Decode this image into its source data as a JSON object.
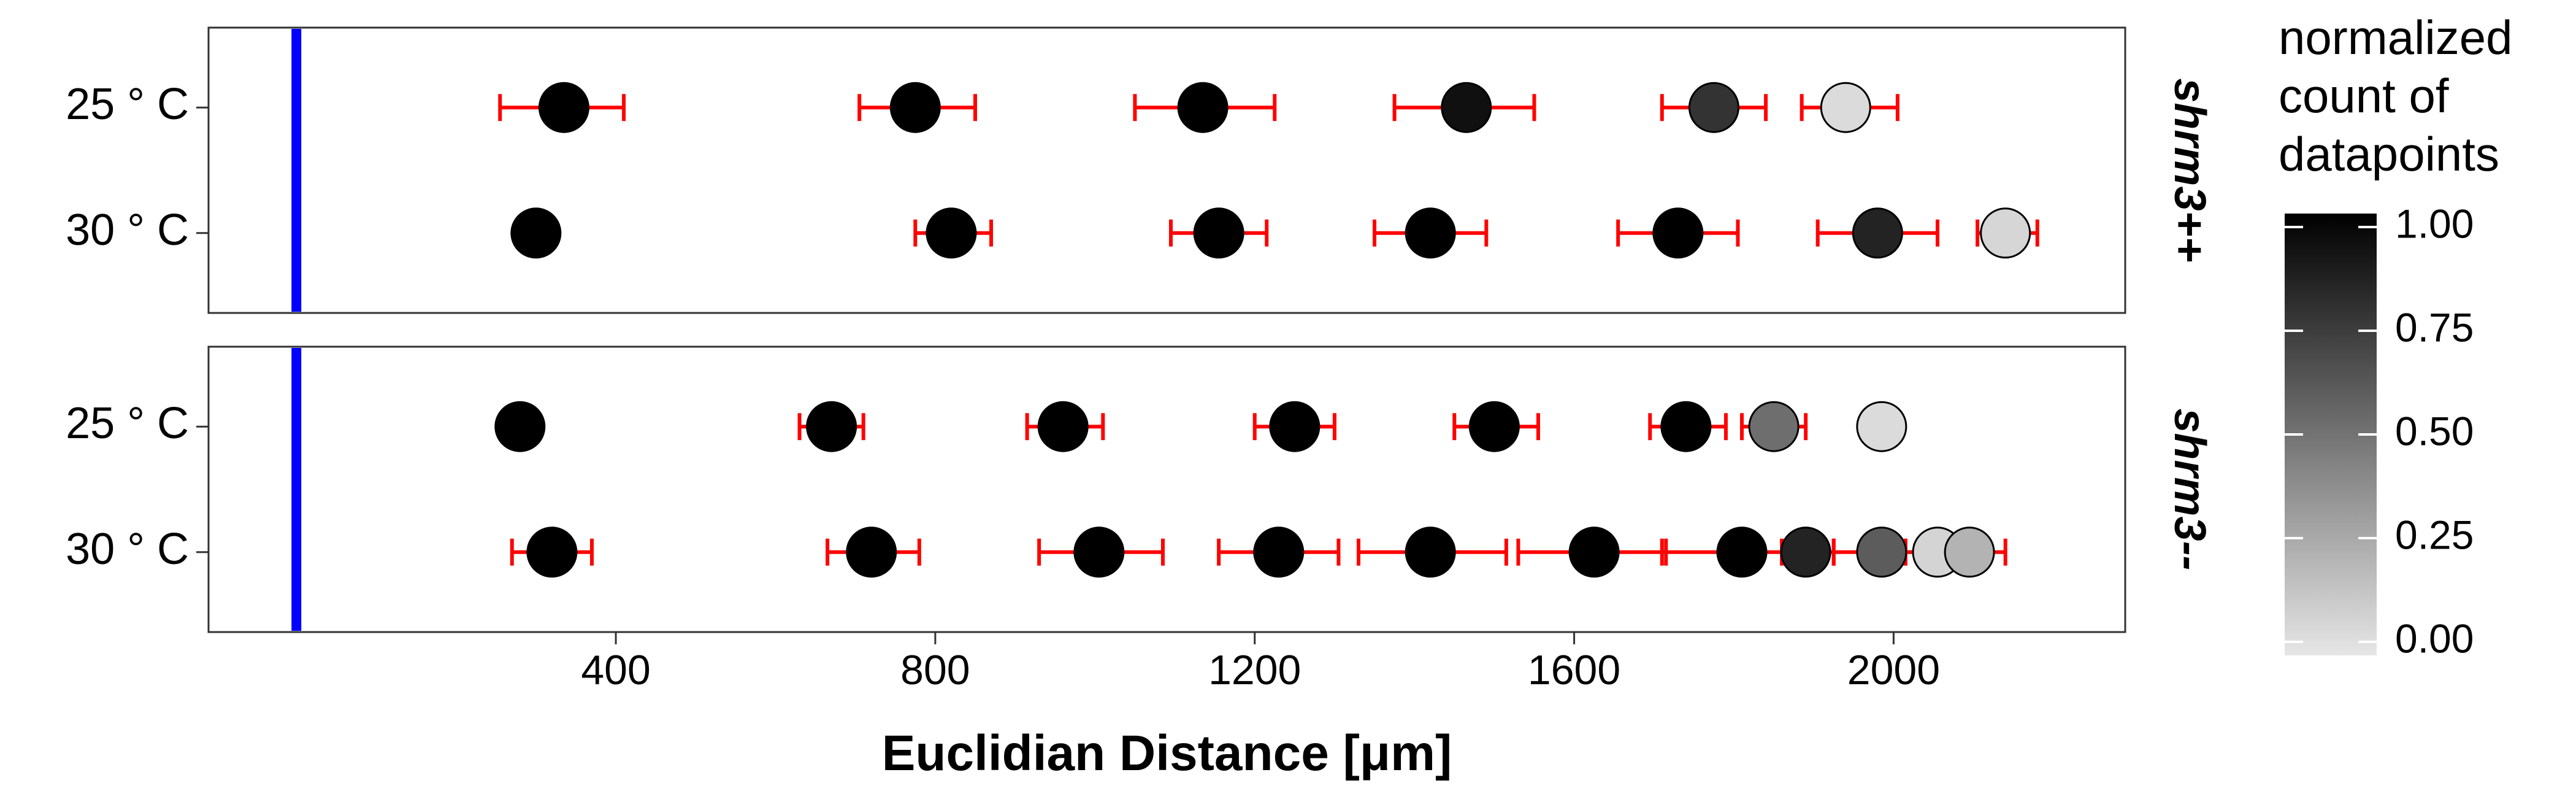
{
  "chart_data": {
    "type": "scatter",
    "xlabel": "Euclidian Distance [μm]",
    "x_ticks": [
      400,
      800,
      1200,
      1600,
      2000
    ],
    "xlim": [
      -110,
      2290
    ],
    "reference_line": {
      "x": 0,
      "color": "#0000ff"
    },
    "error_bar_color": "#ff0000",
    "categories": [
      "25 ° C",
      "30 ° C"
    ],
    "legend": {
      "title": "normalized count of datapoints",
      "title_lines": [
        "normalized",
        "count of",
        "datapoints"
      ],
      "ticks": [
        "1.00",
        "0.75",
        "0.50",
        "0.25",
        "0.00"
      ],
      "tick_values": [
        1.0,
        0.75,
        0.5,
        0.25,
        0.0
      ],
      "color_low": "#e6e6e6",
      "color_high": "#000000"
    },
    "panels": [
      {
        "label": "shrm3++",
        "series": [
          {
            "condition": "25 ° C",
            "points": [
              {
                "x": 335,
                "xmin": 255,
                "xmax": 410,
                "value": 1.0
              },
              {
                "x": 775,
                "xmin": 705,
                "xmax": 850,
                "value": 1.0
              },
              {
                "x": 1135,
                "xmin": 1050,
                "xmax": 1225,
                "value": 1.0
              },
              {
                "x": 1465,
                "xmin": 1375,
                "xmax": 1550,
                "value": 0.93
              },
              {
                "x": 1775,
                "xmin": 1710,
                "xmax": 1840,
                "value": 0.78
              },
              {
                "x": 1940,
                "xmin": 1885,
                "xmax": 2005,
                "value": 0.05
              }
            ]
          },
          {
            "condition": "30 ° C",
            "points": [
              {
                "x": 300,
                "xmin": 285,
                "xmax": 320,
                "value": 1.0
              },
              {
                "x": 820,
                "xmin": 775,
                "xmax": 870,
                "value": 1.0
              },
              {
                "x": 1155,
                "xmin": 1095,
                "xmax": 1215,
                "value": 1.0
              },
              {
                "x": 1420,
                "xmin": 1350,
                "xmax": 1490,
                "value": 1.0
              },
              {
                "x": 1730,
                "xmin": 1655,
                "xmax": 1805,
                "value": 1.0
              },
              {
                "x": 1980,
                "xmin": 1905,
                "xmax": 2055,
                "value": 0.85
              },
              {
                "x": 2140,
                "xmin": 2105,
                "xmax": 2180,
                "value": 0.07
              }
            ]
          }
        ]
      },
      {
        "label": "shrm3--",
        "series": [
          {
            "condition": "25 ° C",
            "points": [
              {
                "x": 280,
                "value": 1.0
              },
              {
                "x": 670,
                "xmin": 630,
                "xmax": 710,
                "value": 1.0
              },
              {
                "x": 960,
                "xmin": 915,
                "xmax": 1010,
                "value": 1.0
              },
              {
                "x": 1250,
                "xmin": 1200,
                "xmax": 1300,
                "value": 1.0
              },
              {
                "x": 1500,
                "xmin": 1450,
                "xmax": 1555,
                "value": 1.0
              },
              {
                "x": 1740,
                "xmin": 1695,
                "xmax": 1790,
                "value": 1.0
              },
              {
                "x": 1850,
                "xmin": 1810,
                "xmax": 1890,
                "value": 0.52
              },
              {
                "x": 1985,
                "value": 0.05
              }
            ]
          },
          {
            "condition": "30 ° C",
            "points": [
              {
                "x": 320,
                "xmin": 270,
                "xmax": 370,
                "value": 1.0
              },
              {
                "x": 720,
                "xmin": 665,
                "xmax": 780,
                "value": 1.0
              },
              {
                "x": 1005,
                "xmin": 930,
                "xmax": 1085,
                "value": 1.0
              },
              {
                "x": 1230,
                "xmin": 1155,
                "xmax": 1305,
                "value": 1.0
              },
              {
                "x": 1420,
                "xmin": 1330,
                "xmax": 1515,
                "value": 1.0
              },
              {
                "x": 1625,
                "xmin": 1530,
                "xmax": 1715,
                "value": 1.0
              },
              {
                "x": 1810,
                "xmin": 1710,
                "xmax": 1915,
                "value": 1.0
              },
              {
                "x": 1890,
                "xmin": 1860,
                "xmax": 1925,
                "value": 0.85
              },
              {
                "x": 1985,
                "xmin": 1925,
                "xmax": 2050,
                "value": 0.6
              },
              {
                "x": 2055,
                "xmin": 2015,
                "xmax": 2095,
                "value": 0.08
              },
              {
                "x": 2095,
                "xmin": 2055,
                "xmax": 2140,
                "value": 0.22
              }
            ]
          }
        ]
      }
    ]
  }
}
